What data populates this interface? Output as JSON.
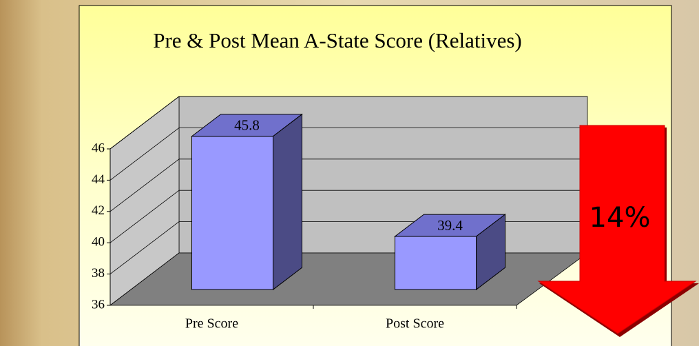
{
  "chart_data": {
    "type": "bar3d",
    "title": "Pre & Post Mean A-State Score (Relatives)",
    "categories": [
      "Pre Score",
      "Post Score"
    ],
    "values": [
      45.8,
      39.4
    ],
    "color": "#9999ff",
    "ylim": [
      36,
      46
    ],
    "yticks": [
      36,
      38,
      40,
      42,
      44,
      46
    ],
    "grid": true,
    "annotation": "14%"
  }
}
